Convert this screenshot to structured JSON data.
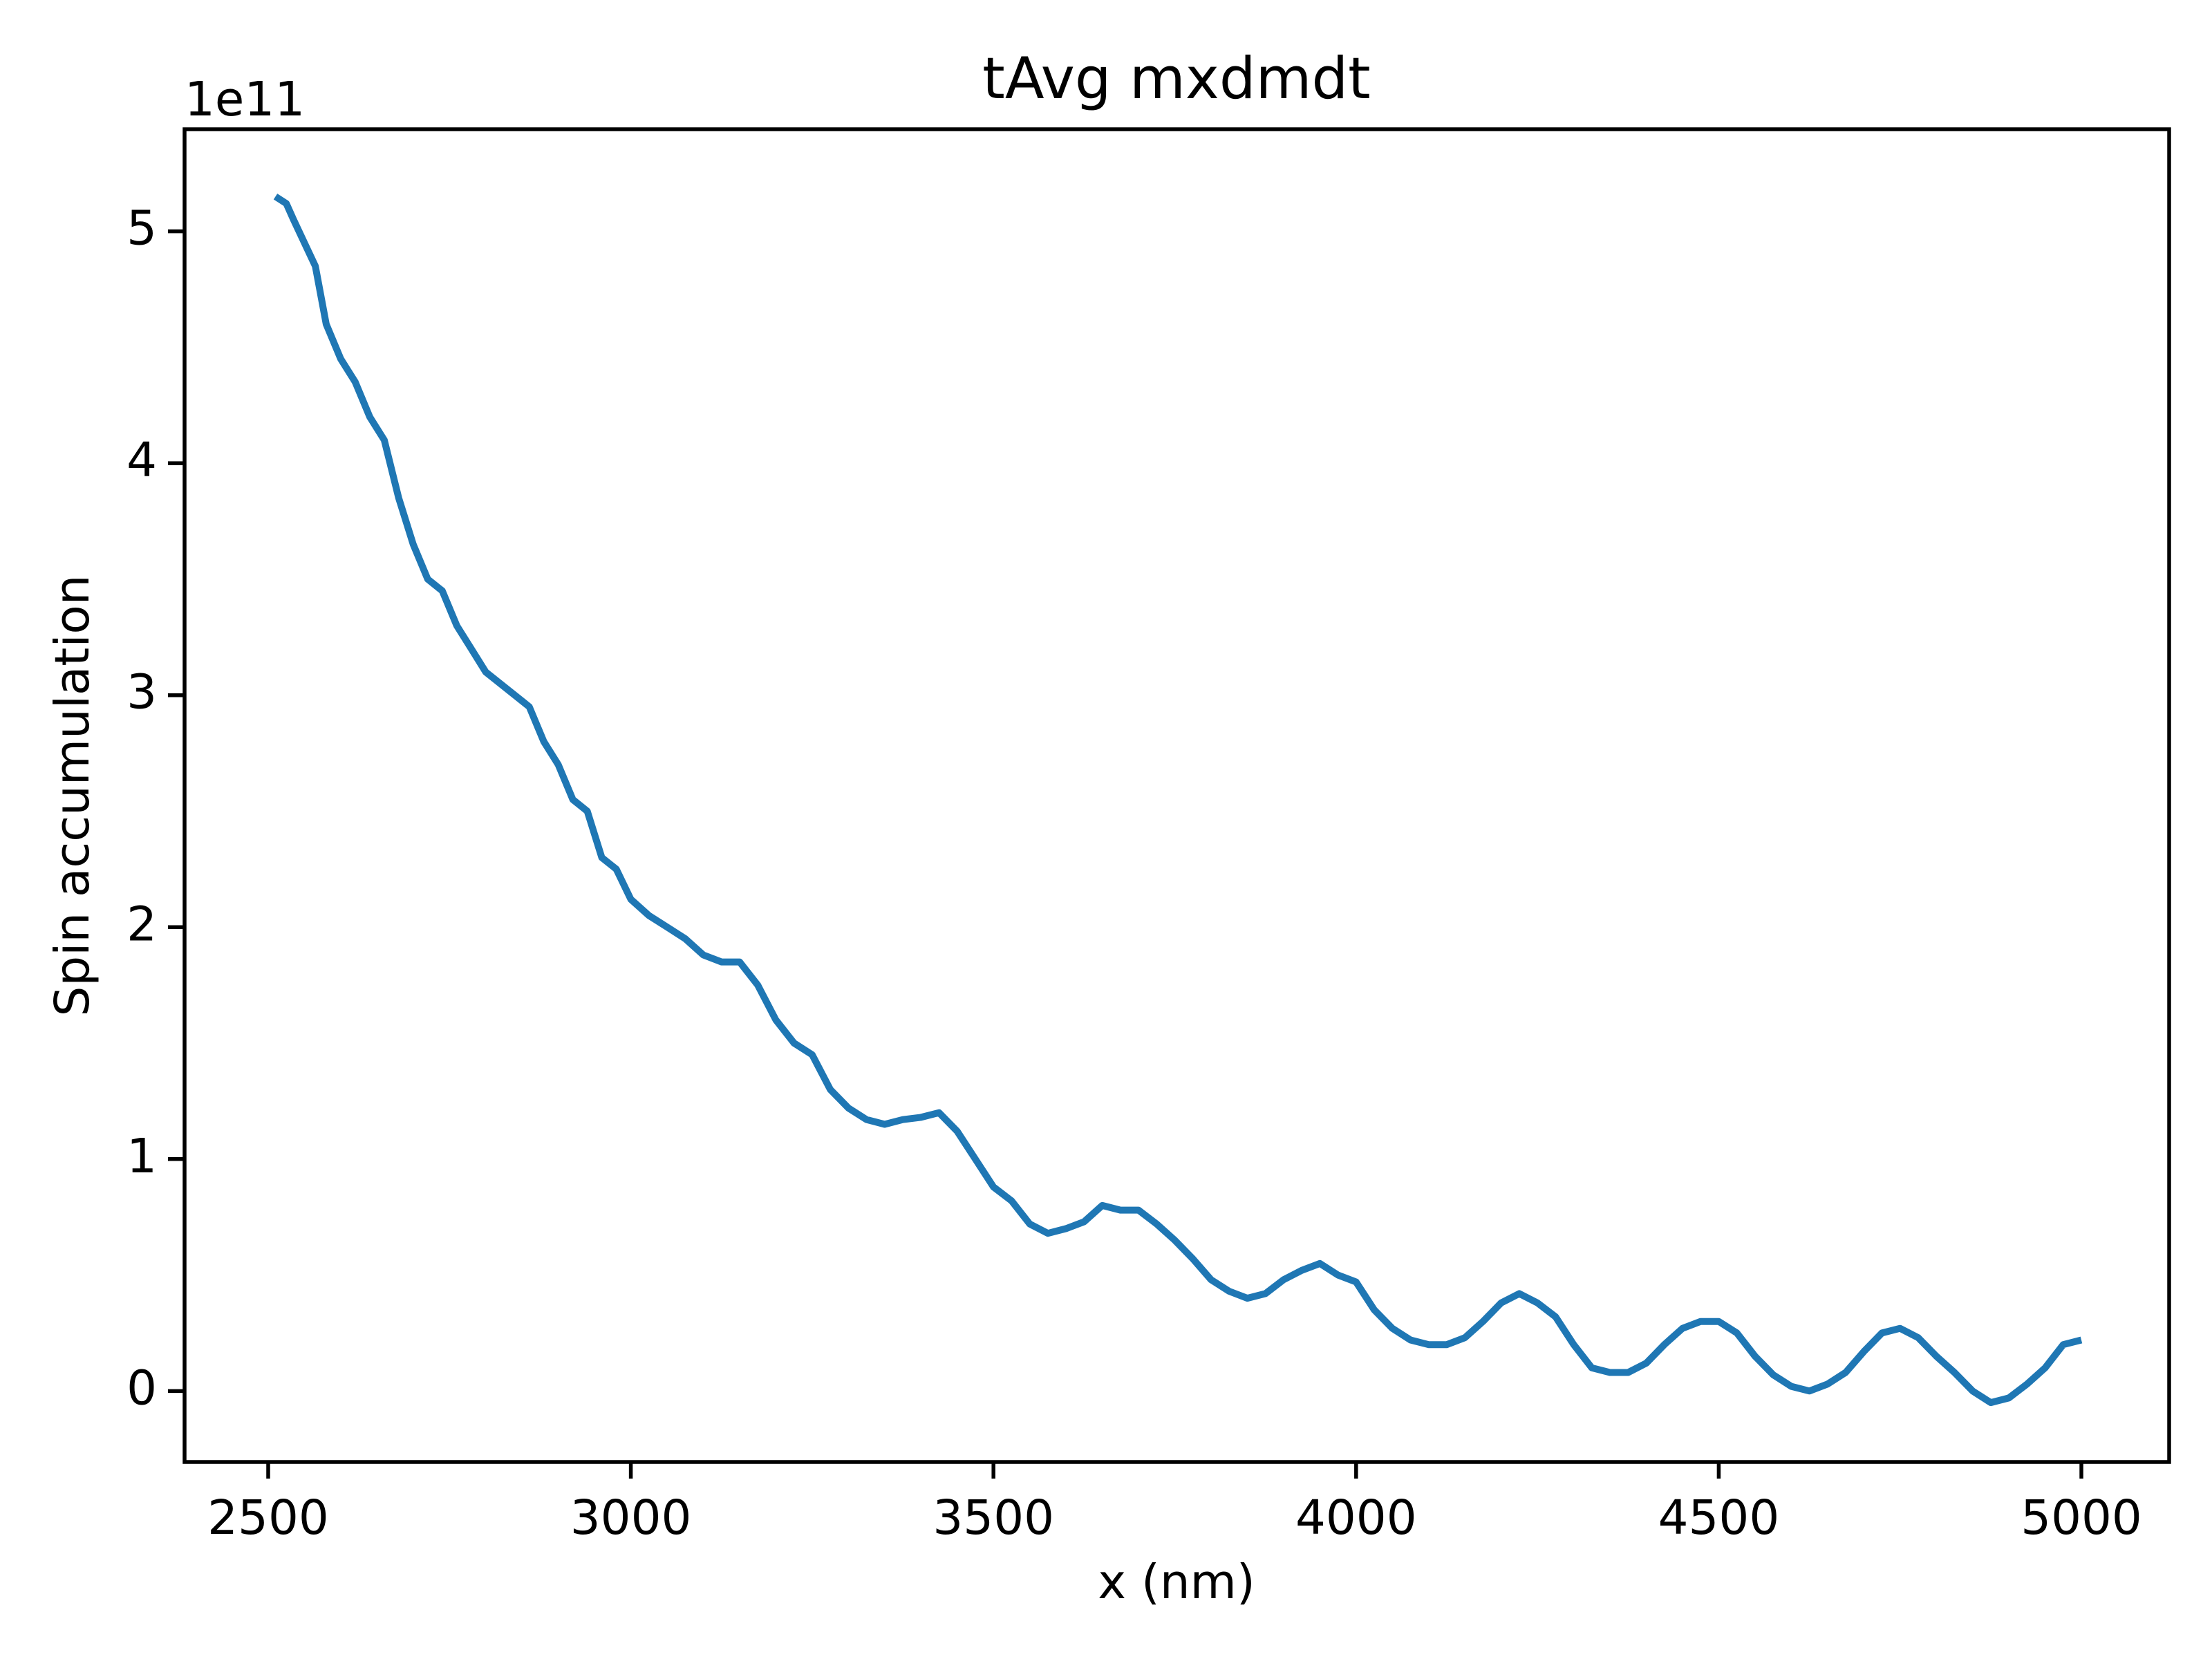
{
  "chart_data": {
    "type": "line",
    "title": "tAvg mxdmdt",
    "x_label": "x (nm)",
    "y_label": "Spin accumulation",
    "y_offset_label": "1e11",
    "color": "#1f77b4",
    "x": [
      2510,
      2525,
      2535,
      2550,
      2565,
      2580,
      2600,
      2620,
      2640,
      2660,
      2680,
      2700,
      2720,
      2740,
      2760,
      2780,
      2800,
      2820,
      2840,
      2860,
      2880,
      2900,
      2920,
      2940,
      2960,
      2980,
      3000,
      3025,
      3050,
      3075,
      3100,
      3125,
      3150,
      3175,
      3200,
      3225,
      3250,
      3275,
      3300,
      3325,
      3350,
      3375,
      3400,
      3425,
      3450,
      3475,
      3500,
      3525,
      3550,
      3575,
      3600,
      3625,
      3650,
      3675,
      3700,
      3725,
      3750,
      3775,
      3800,
      3825,
      3850,
      3875,
      3900,
      3925,
      3950,
      3975,
      4000,
      4025,
      4050,
      4075,
      4100,
      4125,
      4150,
      4175,
      4200,
      4225,
      4250,
      4275,
      4300,
      4325,
      4350,
      4375,
      4400,
      4425,
      4450,
      4475,
      4500,
      4525,
      4550,
      4575,
      4600,
      4625,
      4650,
      4675,
      4700,
      4725,
      4750,
      4775,
      4800,
      4825,
      4850,
      4875,
      4900,
      4925,
      4950,
      4975,
      5000
    ],
    "values": [
      5.15,
      5.12,
      5.05,
      4.95,
      4.85,
      4.6,
      4.45,
      4.35,
      4.2,
      4.1,
      3.85,
      3.65,
      3.5,
      3.45,
      3.3,
      3.2,
      3.1,
      3.05,
      3.0,
      2.95,
      2.8,
      2.7,
      2.55,
      2.5,
      2.3,
      2.25,
      2.12,
      2.05,
      2.0,
      1.95,
      1.88,
      1.85,
      1.85,
      1.75,
      1.6,
      1.5,
      1.45,
      1.3,
      1.22,
      1.17,
      1.15,
      1.17,
      1.18,
      1.2,
      1.12,
      1.0,
      0.88,
      0.82,
      0.72,
      0.68,
      0.7,
      0.73,
      0.8,
      0.78,
      0.78,
      0.72,
      0.65,
      0.57,
      0.48,
      0.43,
      0.4,
      0.42,
      0.48,
      0.52,
      0.55,
      0.5,
      0.47,
      0.35,
      0.27,
      0.22,
      0.2,
      0.2,
      0.23,
      0.3,
      0.38,
      0.42,
      0.38,
      0.32,
      0.2,
      0.1,
      0.08,
      0.08,
      0.12,
      0.2,
      0.27,
      0.3,
      0.3,
      0.25,
      0.15,
      0.07,
      0.02,
      0.0,
      0.03,
      0.08,
      0.17,
      0.25,
      0.27,
      0.23,
      0.15,
      0.08,
      0.0,
      -0.05,
      -0.03,
      0.03,
      0.1,
      0.2,
      0.22
    ],
    "xlim": [
      2384.7,
      5121
    ],
    "ylim": [
      -0.306,
      5.44
    ],
    "xticks": [
      2500,
      3000,
      3500,
      4000,
      4500,
      5000
    ],
    "yticks": [
      0,
      1,
      2,
      3,
      4,
      5
    ]
  }
}
